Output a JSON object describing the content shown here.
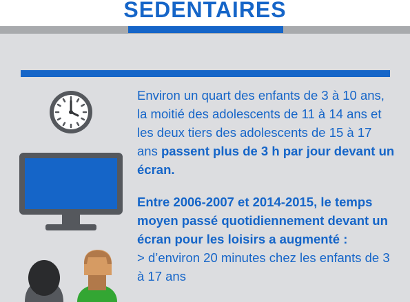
{
  "header": {
    "title": "SEDENTAIRES"
  },
  "paragraph1": {
    "text": "Environ un quart des enfants de 3 à 10 ans, la moitié des adolescents de 11 à 14 ans et les deux tiers des adolescents de 15 à 17 ans ",
    "bold": "passent plus de 3 h par jour devant un écran."
  },
  "paragraph2": {
    "bold": "Entre 2006-2007 et 2014-2015, le temps moyen passé quotidiennement devant un écran pour les loisirs a augmenté :",
    "items": [
      "> d’environ 20 minutes chez les enfants de 3 à 17 ans"
    ]
  },
  "colors": {
    "accent": "#1565c8",
    "background": "#dcdde0",
    "stripe": "#a8aaad"
  },
  "icons": [
    "clock-icon",
    "monitor-icon",
    "people-icon"
  ]
}
